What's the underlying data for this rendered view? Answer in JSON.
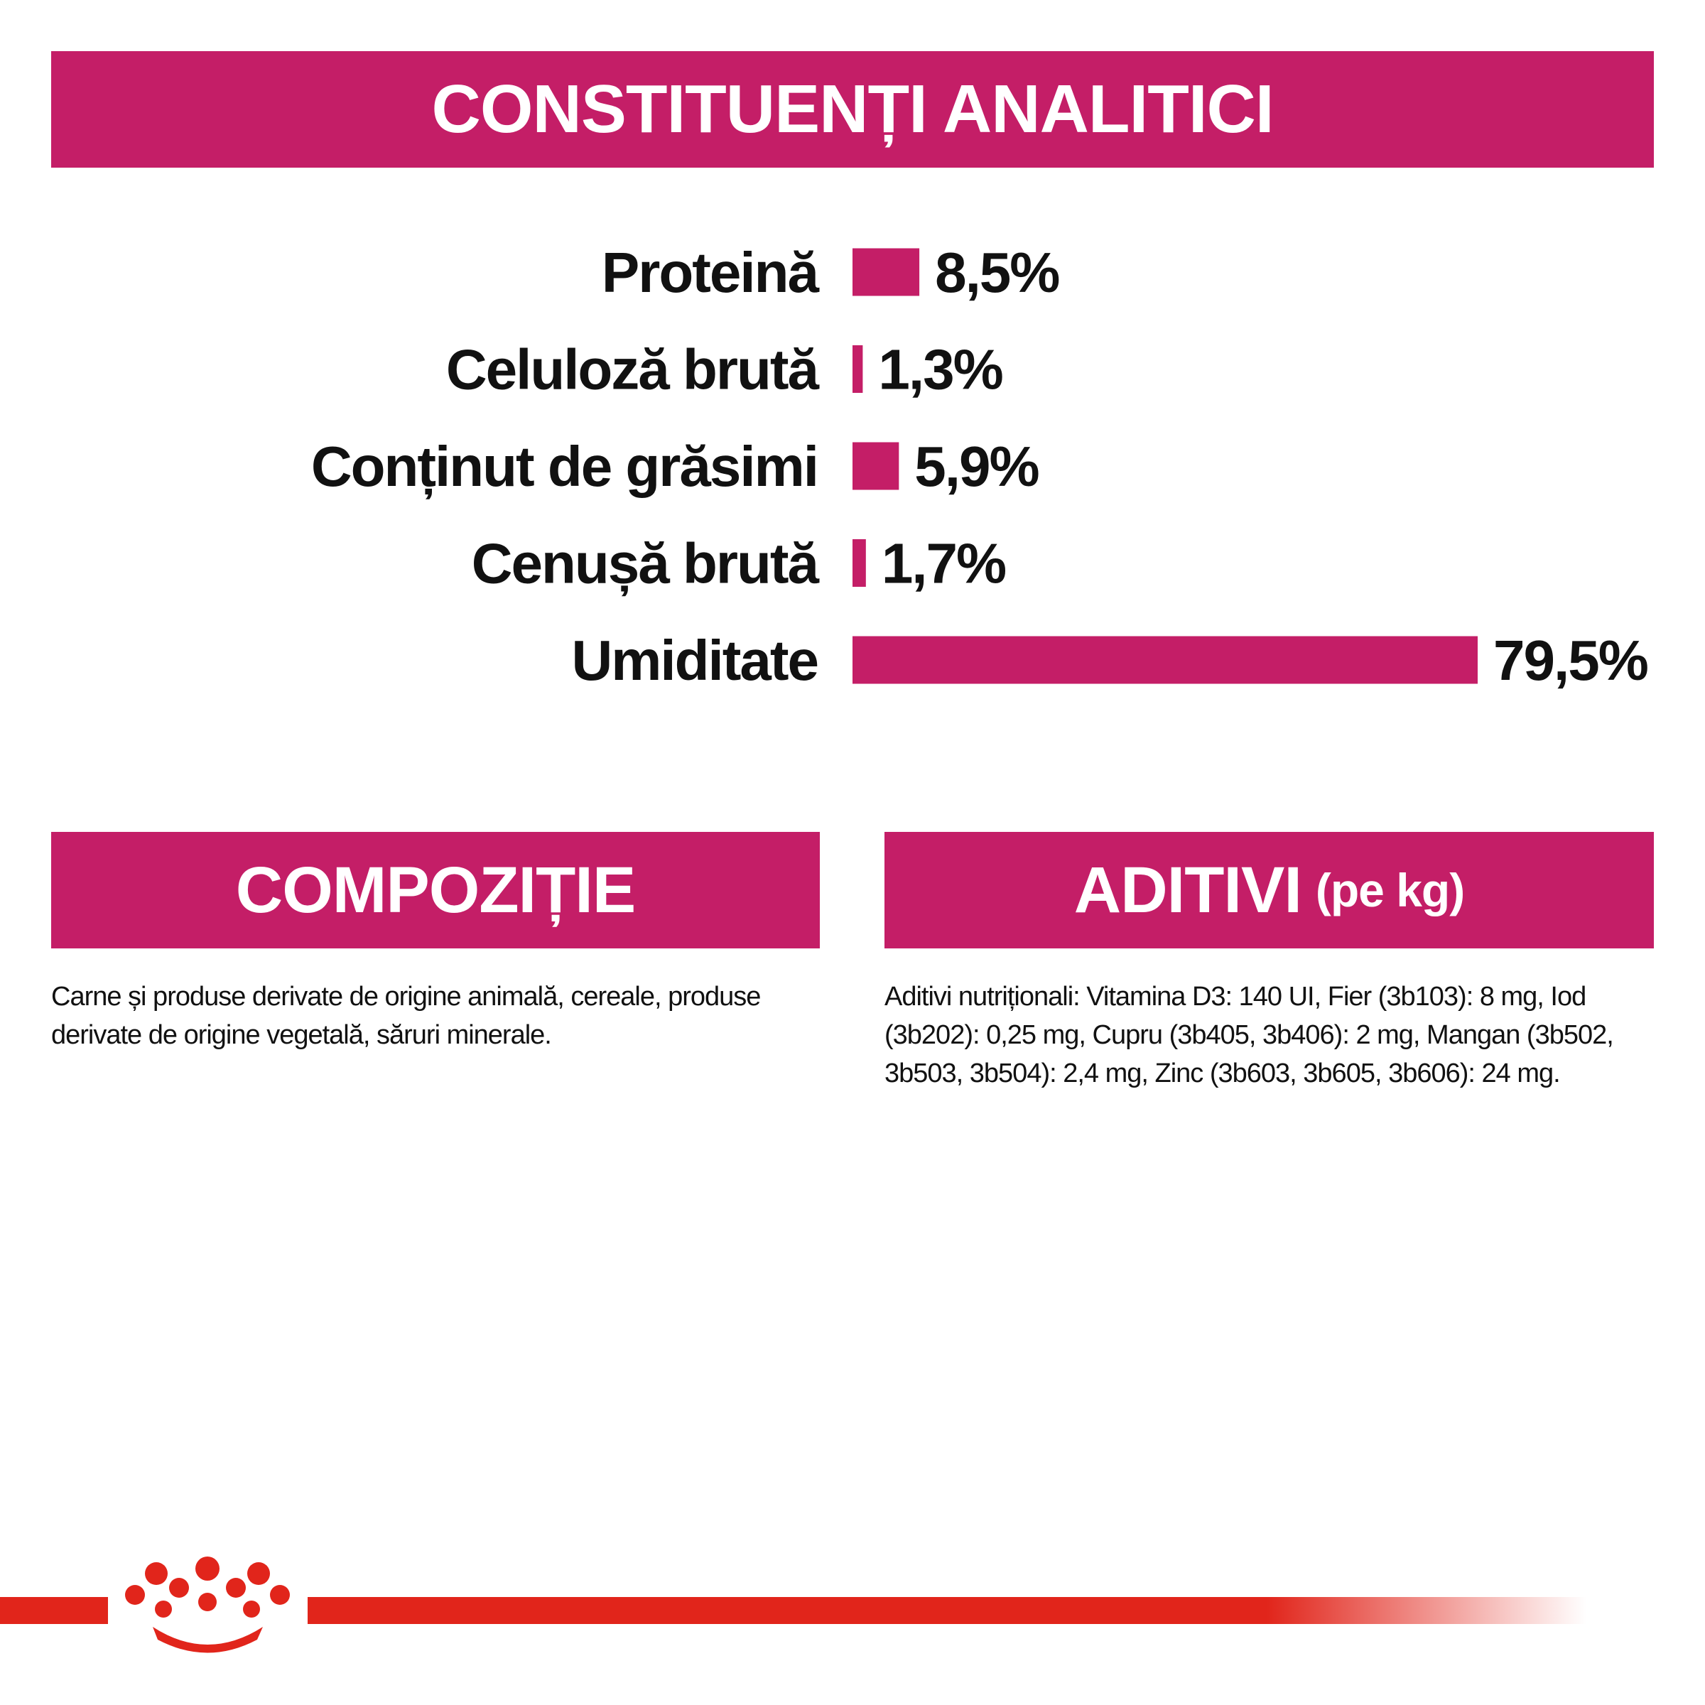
{
  "chart_data": {
    "type": "bar",
    "orientation": "horizontal",
    "title": "CONSTITUENȚI ANALITICI",
    "categories": [
      "Proteină",
      "Celuloză brută",
      "Conținut de grăsimi",
      "Cenușă brută",
      "Umiditate"
    ],
    "values": [
      8.5,
      1.3,
      5.9,
      1.7,
      79.5
    ],
    "value_labels": [
      "8,5%",
      "1,3%",
      "5,9%",
      "1,7%",
      "79,5%"
    ],
    "color": "#c41e67"
  },
  "composition": {
    "title": "COMPOZIȚIE",
    "text": "Carne și produse derivate de origine animală, cereale, produse derivate de origine vegetală, săruri minerale."
  },
  "additives": {
    "title": "ADITIVI",
    "title_suffix": "(pe kg)",
    "text": "Aditivi nutriționali: Vitamina D3: 140 UI, Fier (3b103): 8 mg, Iod (3b202): 0,25 mg, Cupru (3b405, 3b406): 2 mg, Mangan (3b502, 3b503, 3b504): 2,4 mg, Zinc (3b603, 3b605, 3b606): 24 mg."
  }
}
